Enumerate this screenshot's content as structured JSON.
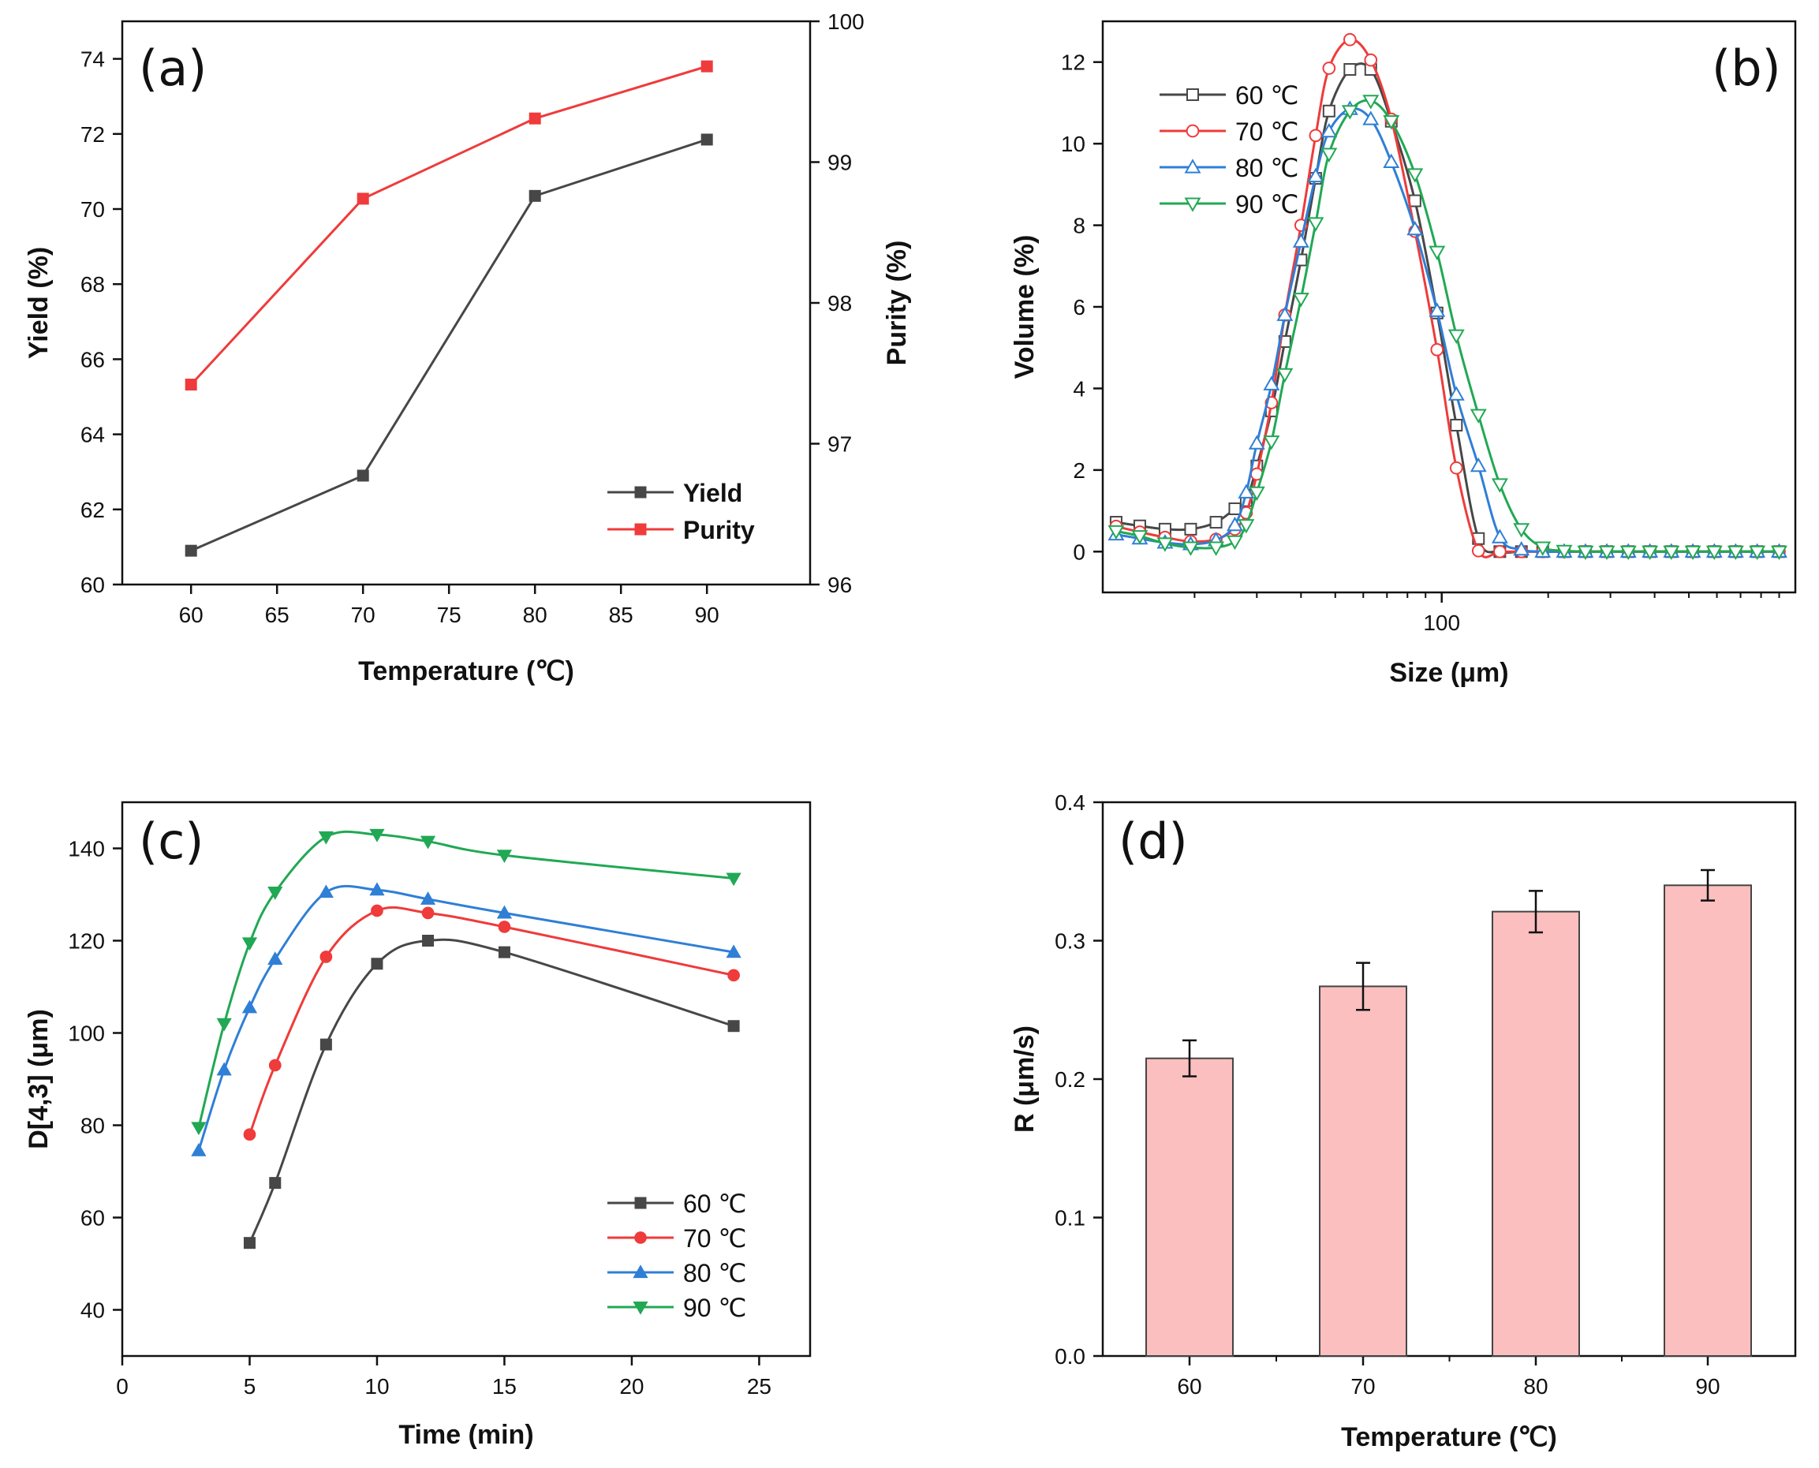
{
  "chart_data": [
    {
      "id": "a",
      "type": "line",
      "panel_label": "(a)",
      "xlabel": "Temperature (℃)",
      "ylabel": "Yield (%)",
      "ylabel_right": "Purity (%)",
      "xlim": [
        56,
        96
      ],
      "ylim": [
        60,
        75
      ],
      "ylim_right": [
        96,
        100
      ],
      "xticks": [
        60,
        65,
        70,
        75,
        80,
        85,
        90
      ],
      "yticks": [
        60,
        62,
        64,
        66,
        68,
        70,
        72,
        74
      ],
      "yticks_right": [
        96,
        97,
        98,
        99,
        100
      ],
      "legend_position": "lower-right",
      "series": [
        {
          "name": "Yield",
          "axis": "left",
          "color": "#474747",
          "marker": "square-filled",
          "x": [
            60,
            70,
            80,
            90
          ],
          "y": [
            60.9,
            62.9,
            70.35,
            71.85
          ]
        },
        {
          "name": "Purity",
          "axis": "right",
          "color": "#ef3b3b",
          "marker": "square-filled",
          "x": [
            60,
            70,
            80,
            90
          ],
          "y": [
            97.42,
            98.74,
            99.31,
            99.68
          ]
        }
      ]
    },
    {
      "id": "b",
      "type": "line",
      "panel_label": "(b)",
      "xlabel": "Size (μm)",
      "ylabel": "Volume (%)",
      "xscale": "log",
      "xlim": [
        11,
        1000
      ],
      "ylim": [
        -1,
        13
      ],
      "xticks": [
        100
      ],
      "yticks": [
        0,
        2,
        4,
        6,
        8,
        10,
        12
      ],
      "legend_position": "top-left",
      "series": [
        {
          "name": "60 ℃",
          "color": "#474747",
          "marker": "square-open",
          "x": [
            12,
            14,
            16.5,
            19.5,
            23,
            26,
            28,
            30,
            33,
            36,
            40,
            44,
            48,
            55,
            63,
            72,
            84,
            97,
            110,
            127,
            146,
            168,
            193,
            222,
            255,
            293,
            337,
            388,
            446,
            513,
            590,
            678,
            780,
            900
          ],
          "y": [
            0.72,
            0.63,
            0.55,
            0.55,
            0.72,
            1.05,
            1.25,
            2.1,
            3.45,
            5.15,
            7.15,
            9.15,
            10.8,
            11.82,
            11.82,
            10.55,
            8.6,
            5.85,
            3.1,
            0.32,
            0,
            0,
            0,
            0,
            0,
            0,
            0,
            0,
            0,
            0,
            0,
            0,
            0,
            0
          ]
        },
        {
          "name": "70 ℃",
          "color": "#ef3b3b",
          "marker": "circle-open",
          "x": [
            12,
            14,
            16.5,
            19.5,
            23,
            26,
            28,
            30,
            33,
            36,
            40,
            44,
            48,
            55,
            63,
            72,
            84,
            97,
            110,
            127,
            146,
            168,
            193,
            222,
            255,
            293,
            337,
            388,
            446,
            513,
            590,
            678,
            780,
            900
          ],
          "y": [
            0.62,
            0.48,
            0.35,
            0.25,
            0.3,
            0.55,
            0.95,
            1.9,
            3.65,
            5.8,
            8.0,
            10.2,
            11.85,
            12.55,
            12.05,
            10.6,
            7.85,
            4.95,
            2.05,
            0.02,
            0,
            0,
            0,
            0,
            0,
            0,
            0,
            0,
            0,
            0,
            0,
            0,
            0,
            0
          ]
        },
        {
          "name": "80 ℃",
          "color": "#2f7fd6",
          "marker": "triangle-up-open",
          "x": [
            12,
            14,
            16.5,
            19.5,
            23,
            26,
            28,
            30,
            33,
            36,
            40,
            44,
            48,
            55,
            63,
            72,
            84,
            97,
            110,
            127,
            146,
            168,
            193,
            222,
            255,
            293,
            337,
            388,
            446,
            513,
            590,
            678,
            780,
            900
          ],
          "y": [
            0.42,
            0.32,
            0.22,
            0.18,
            0.28,
            0.65,
            1.45,
            2.65,
            4.1,
            5.8,
            7.6,
            9.2,
            10.3,
            10.85,
            10.6,
            9.55,
            7.9,
            5.9,
            3.85,
            2.1,
            0.35,
            0.05,
            0,
            0,
            0,
            0,
            0,
            0,
            0,
            0,
            0,
            0,
            0,
            0
          ]
        },
        {
          "name": "90 ℃",
          "color": "#21a854",
          "marker": "triangle-down-open",
          "x": [
            12,
            14,
            16.5,
            19.5,
            23,
            26,
            28,
            30,
            33,
            36,
            40,
            44,
            48,
            55,
            63,
            72,
            84,
            97,
            110,
            127,
            146,
            168,
            193,
            222,
            255,
            293,
            337,
            388,
            446,
            513,
            590,
            678,
            780,
            900
          ],
          "y": [
            0.5,
            0.38,
            0.2,
            0.1,
            0.1,
            0.25,
            0.65,
            1.45,
            2.7,
            4.35,
            6.2,
            8.05,
            9.75,
            10.8,
            11.05,
            10.55,
            9.25,
            7.35,
            5.3,
            3.35,
            1.65,
            0.55,
            0.1,
            0.02,
            0,
            0,
            0,
            0,
            0,
            0,
            0,
            0,
            0,
            0
          ]
        }
      ]
    },
    {
      "id": "c",
      "type": "line",
      "panel_label": "(c)",
      "xlabel": "Time (min)",
      "ylabel": "D[4,3] (μm)",
      "xlim": [
        0,
        27
      ],
      "ylim": [
        30,
        150
      ],
      "xticks": [
        0,
        5,
        10,
        15,
        20,
        25
      ],
      "yticks": [
        40,
        60,
        80,
        100,
        120,
        140
      ],
      "legend_position": "lower-right",
      "series": [
        {
          "name": "60 ℃",
          "color": "#474747",
          "marker": "square-filled",
          "x": [
            5,
            6,
            8,
            10,
            12,
            15,
            24
          ],
          "y": [
            54.5,
            67.5,
            97.5,
            115,
            120,
            117.5,
            101.5
          ]
        },
        {
          "name": "70 ℃",
          "color": "#ef3b3b",
          "marker": "circle-filled",
          "x": [
            5,
            6,
            8,
            10,
            12,
            15,
            24
          ],
          "y": [
            78,
            93,
            116.5,
            126.5,
            126,
            123,
            112.5
          ]
        },
        {
          "name": "80 ℃",
          "color": "#2f7fd6",
          "marker": "triangle-up-filled",
          "x": [
            3,
            4,
            5,
            6,
            8,
            10,
            12,
            15,
            24
          ],
          "y": [
            74.5,
            92,
            105.5,
            116,
            130.5,
            131,
            129,
            126,
            117.5
          ]
        },
        {
          "name": "90 ℃",
          "color": "#21a854",
          "marker": "triangle-down-filled",
          "x": [
            3,
            4,
            5,
            6,
            8,
            10,
            12,
            15,
            24
          ],
          "y": [
            79.5,
            102,
            119.5,
            130.5,
            142.5,
            143,
            141.5,
            138.5,
            133.5
          ]
        }
      ]
    },
    {
      "id": "d",
      "type": "bar",
      "panel_label": "(d)",
      "xlabel": "Temperature (℃)",
      "ylabel": "R (μm/s)",
      "ylim": [
        0,
        0.4
      ],
      "yticks": [
        "0.0",
        "0.1",
        "0.2",
        "0.3",
        "0.4"
      ],
      "categories": [
        "60",
        "70",
        "80",
        "90"
      ],
      "values": [
        0.215,
        0.267,
        0.321,
        0.34
      ],
      "errors": [
        0.013,
        0.017,
        0.015,
        0.011
      ],
      "bar_color": "#fbbfbf",
      "bar_edge": "#444444"
    }
  ]
}
